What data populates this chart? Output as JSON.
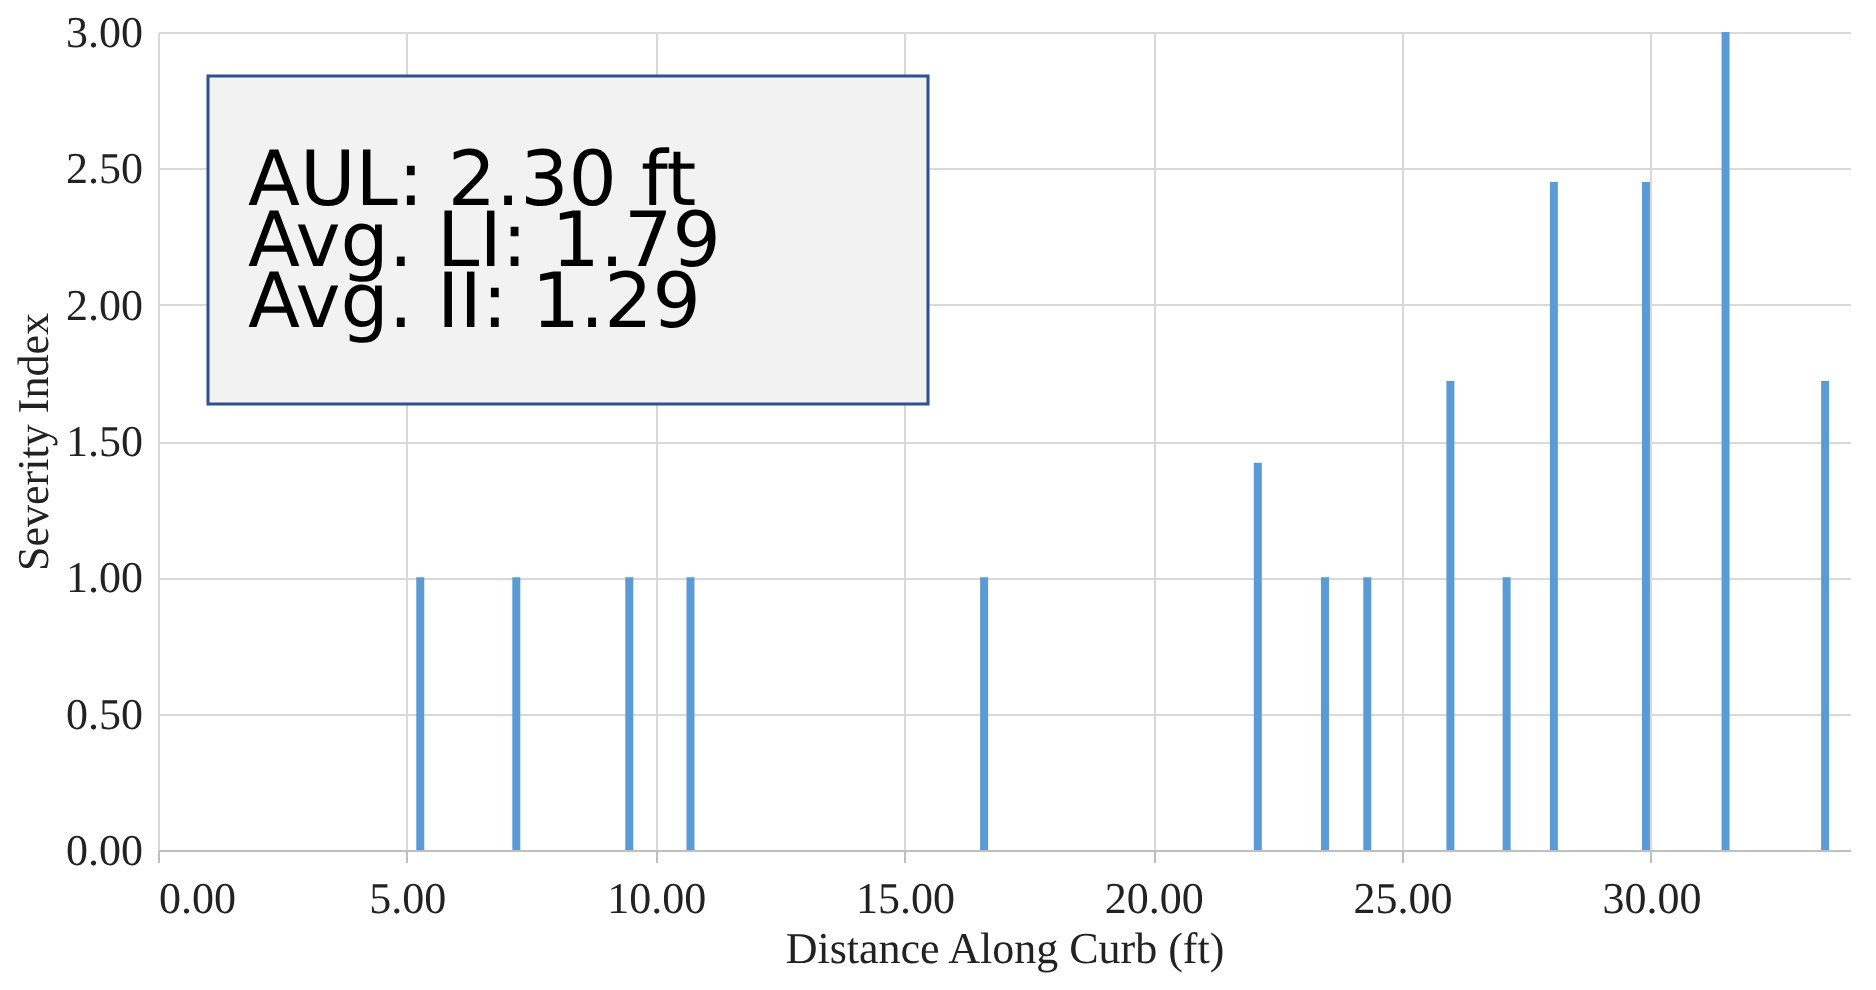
{
  "chart_data": {
    "type": "bar",
    "xlabel": "Distance Along Curb (ft)",
    "ylabel": "Severity Index",
    "x": [
      5.27,
      7.2,
      9.47,
      10.7,
      16.6,
      22.1,
      23.45,
      24.3,
      25.97,
      27.1,
      28.05,
      29.9,
      31.5,
      33.5
    ],
    "values": [
      1.0,
      1.0,
      1.0,
      1.0,
      1.0,
      1.42,
      1.0,
      1.0,
      1.72,
      1.0,
      2.45,
      2.45,
      3.0,
      1.72
    ],
    "color": "#5b9bd5",
    "xlim": [
      0,
      34
    ],
    "xticks": [
      {
        "value": 0,
        "label": "0.00"
      },
      {
        "value": 5,
        "label": "5.00"
      },
      {
        "value": 10,
        "label": "10.00"
      },
      {
        "value": 15,
        "label": "15.00"
      },
      {
        "value": 20,
        "label": "20.00"
      },
      {
        "value": 25,
        "label": "25.00"
      },
      {
        "value": 30,
        "label": "30.00"
      }
    ],
    "ylim": [
      0,
      3
    ],
    "yticks": [
      {
        "value": 0,
        "label": "0.00"
      },
      {
        "value": 0.5,
        "label": "0.50"
      },
      {
        "value": 1,
        "label": "1.00"
      },
      {
        "value": 1.5,
        "label": "1.50"
      },
      {
        "value": 2,
        "label": "2.00"
      },
      {
        "value": 2.5,
        "label": "2.50"
      },
      {
        "value": 3,
        "label": "3.00"
      }
    ],
    "grid": true,
    "annotations": [
      "AUL: 2.30 ft",
      "Avg. LI: 1.79",
      "Avg. II: 1.29"
    ]
  }
}
